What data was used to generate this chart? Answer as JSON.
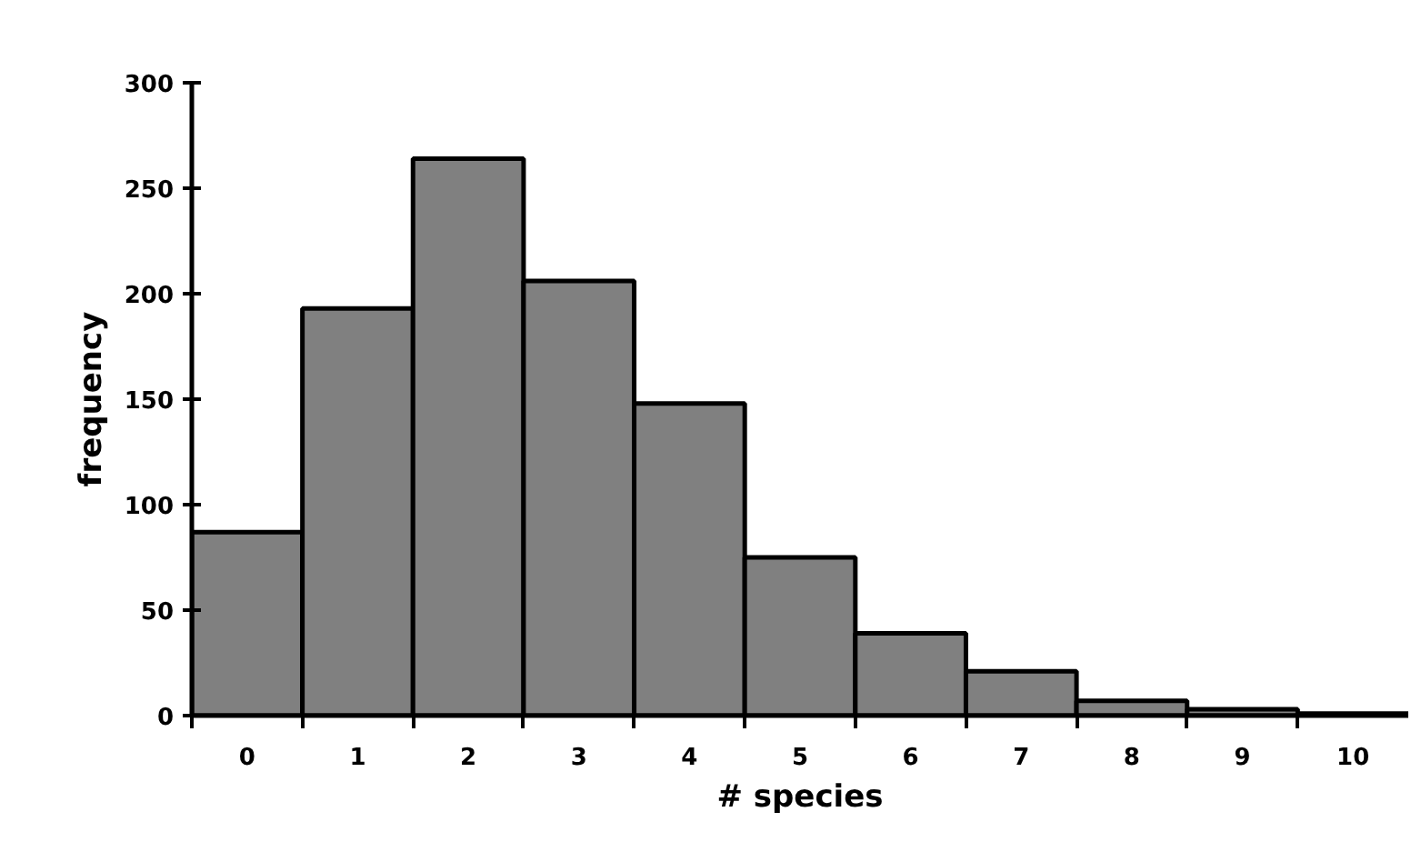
{
  "chart_data": {
    "type": "bar",
    "xlabel": "# species",
    "ylabel": "frequency",
    "categories": [
      "0",
      "1",
      "2",
      "3",
      "4",
      "5",
      "6",
      "7",
      "8",
      "9",
      "10"
    ],
    "values": [
      87,
      193,
      264,
      206,
      148,
      75,
      39,
      21,
      7,
      3,
      1
    ],
    "color": "#808080",
    "ylim": [
      0,
      300
    ],
    "yticks": [
      0,
      50,
      100,
      150,
      200,
      250,
      300
    ],
    "grid": false
  }
}
